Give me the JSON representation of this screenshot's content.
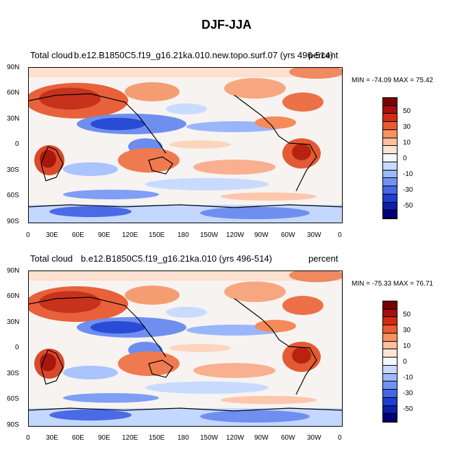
{
  "figure": {
    "title": "DJF-JJA"
  },
  "panels": [
    {
      "left_label": "Total cloud",
      "center_label": "b.e12.B1850C5.f19_g16.21ka.010.new.topo.surf.07 (yrs 496-514)",
      "right_label": "percent",
      "min_max": "MIN = -74.09 MAX =  75.42"
    },
    {
      "left_label": "Total cloud",
      "center_label": "b.e12.B1850C5.f19_g16.21ka.010 (yrs 496-514)",
      "right_label": "percent",
      "min_max": "MIN = -75.33 MAX =  76.71"
    }
  ],
  "axes": {
    "lat_ticks": [
      "90N",
      "60N",
      "30N",
      "0",
      "30S",
      "60S",
      "90S"
    ],
    "lon_ticks": [
      "0",
      "30E",
      "60E",
      "90E",
      "120E",
      "150E",
      "180",
      "150W",
      "120W",
      "90W",
      "60W",
      "30W",
      "0"
    ]
  },
  "colorbar": {
    "labels": [
      "50",
      "30",
      "10",
      "0",
      "-10",
      "-30",
      "-50"
    ],
    "colors": [
      "#7a0000",
      "#a40f0f",
      "#d42a14",
      "#ec5a33",
      "#f7925f",
      "#fdbf9c",
      "#fde4d2",
      "#f4f8ff",
      "#c8dbff",
      "#9ab9ff",
      "#6f93f3",
      "#4666e5",
      "#1f3ecf",
      "#0b1fa8",
      "#00007a"
    ]
  }
}
